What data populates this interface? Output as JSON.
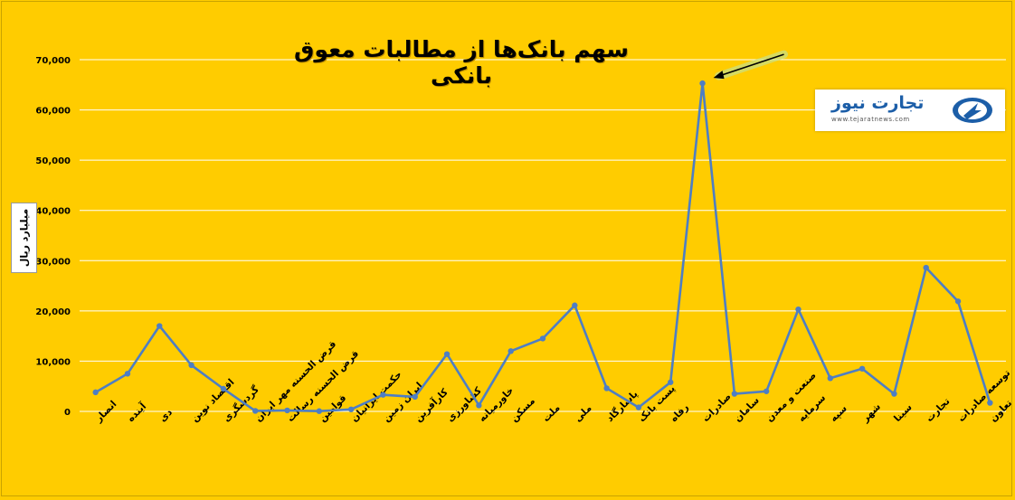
{
  "chart_data": {
    "type": "line",
    "title": "سهم بانک‌ها از مطالبات معوق بانکی",
    "ylabel": "میلیارد ریال",
    "xlabel": "",
    "ylim": [
      0,
      70000
    ],
    "yticks": [
      "0",
      "10,000",
      "20,000",
      "30,000",
      "40,000",
      "50,000",
      "60,000",
      "70,000"
    ],
    "grid": "horizontal",
    "line_color": "#4e7ec4",
    "categories": [
      "انصار",
      "آینده",
      "دی",
      "اقتصاد نوین",
      "گردشگری",
      "قرض الحسنه مهر ایران",
      "قرض الحسنه رسالت",
      "قوامین",
      "حکمت ایرانیان",
      "ایران زمین",
      "کارآفرین",
      "کشاورزی",
      "خاورمیانه",
      "مسکن",
      "ملت",
      "ملی",
      "پاسارگاد",
      "پست بانک",
      "رفاه",
      "صادرات",
      "سامان",
      "صنعت و معدن",
      "سرمایه",
      "سپه",
      "شهر",
      "سینا",
      "تجارت",
      "توسعه صادرات",
      "توسعه تعاون"
    ],
    "values": [
      3800,
      7500,
      17000,
      9200,
      4500,
      100,
      200,
      50,
      400,
      3300,
      2900,
      11400,
      1200,
      12000,
      14500,
      21100,
      4600,
      800,
      5800,
      65300,
      3500,
      4000,
      20300,
      6600,
      8500,
      3500,
      28600,
      21900,
      1700
    ]
  },
  "annotation": {
    "arrow_target": "صادرات"
  },
  "logo": {
    "name": "تجارت نیوز",
    "url": "www.tejaratnews.com",
    "brand_color": "#1c5ea8"
  },
  "colors": {
    "background": "#ffcc00",
    "gridline": "#ffffff"
  }
}
